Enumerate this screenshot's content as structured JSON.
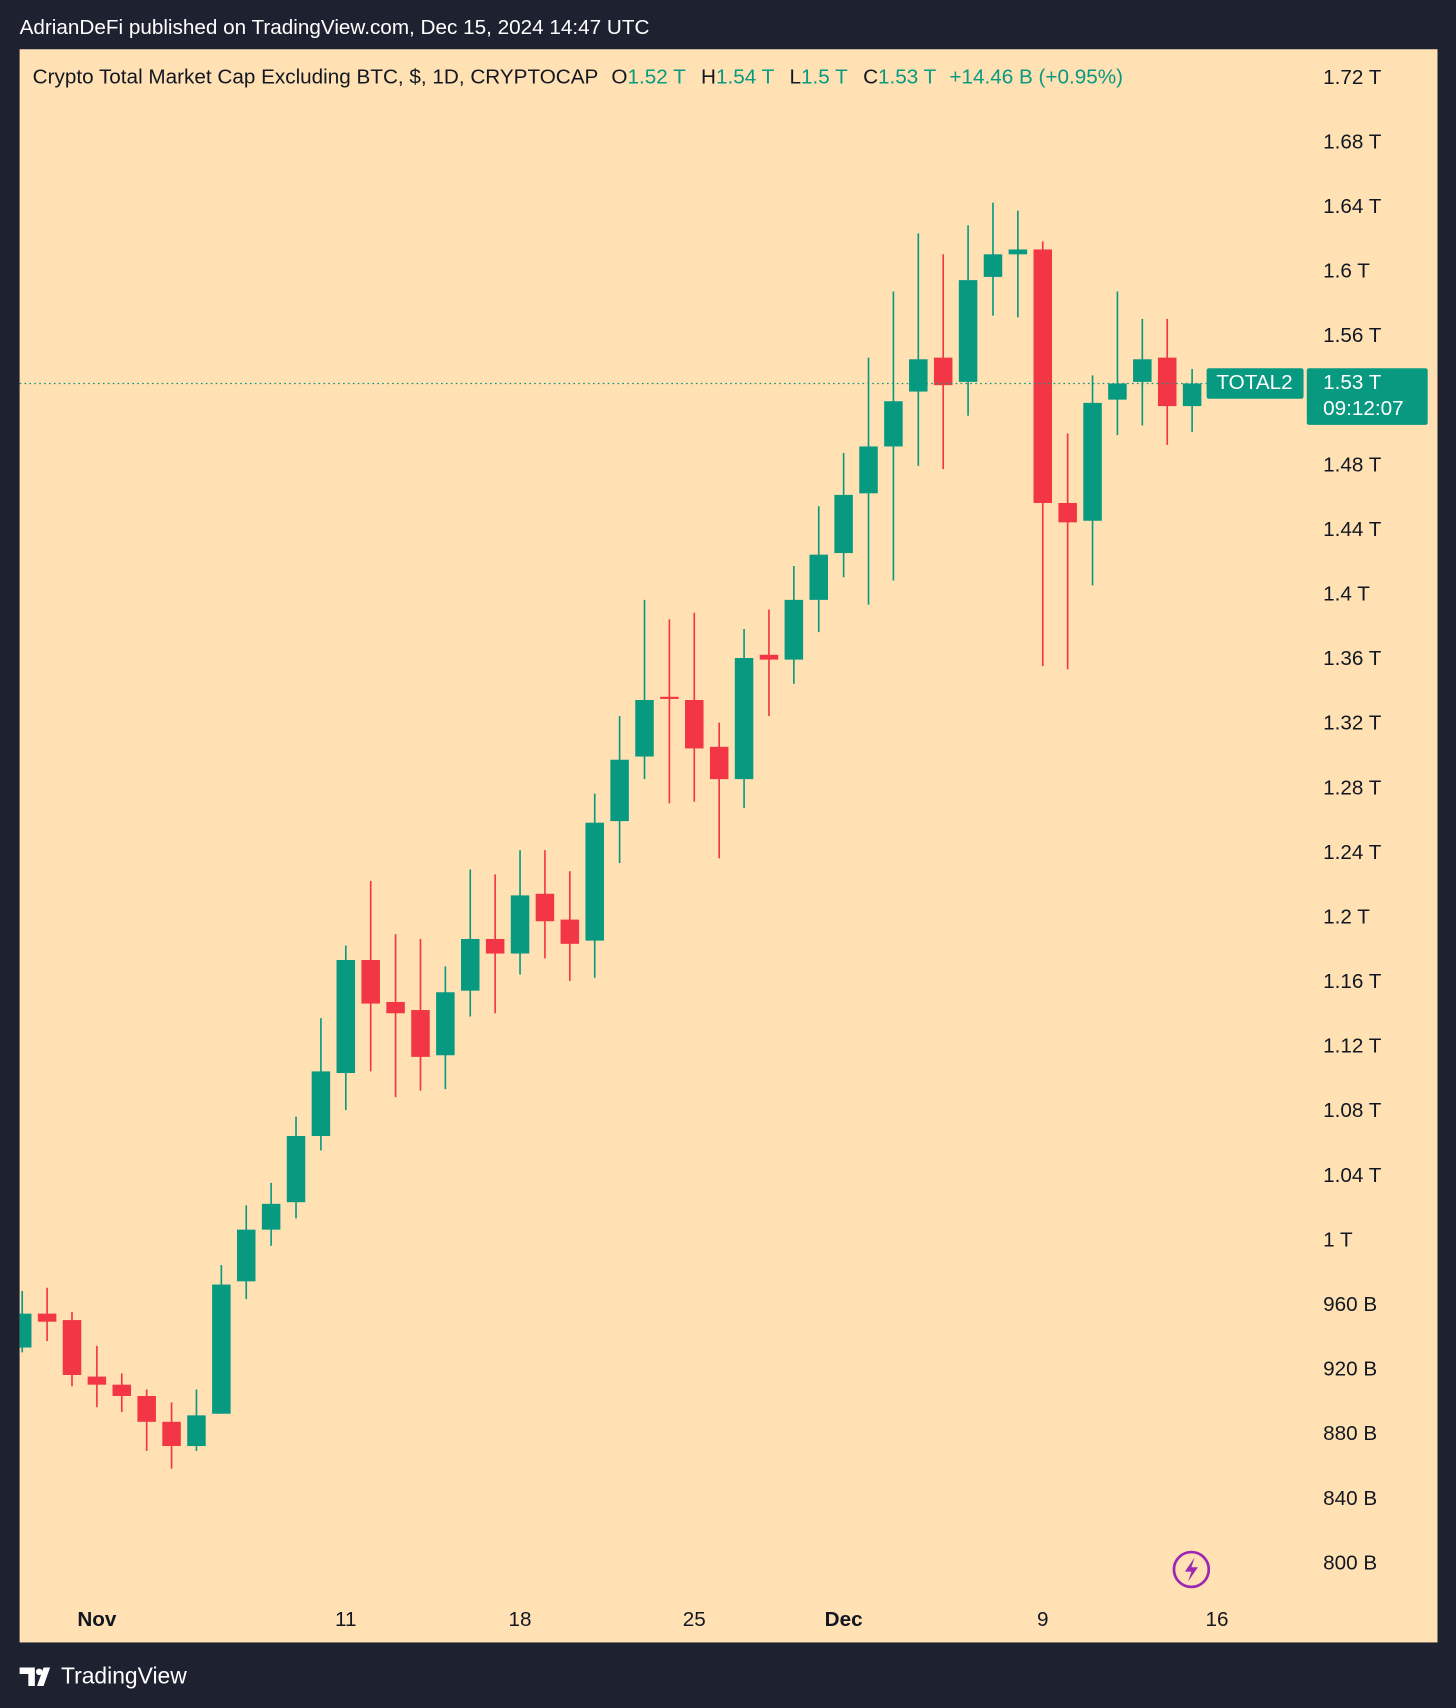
{
  "header": {
    "published": "AdrianDeFi published on TradingView.com, Dec 15, 2024 14:47 UTC"
  },
  "footer": {
    "brand": "TradingView"
  },
  "chart_data": {
    "type": "candlestick",
    "title": "Crypto Total Market Cap Excluding BTC, $, 1D, CRYPTOCAP",
    "ohlc_legend": [
      {
        "key": "O",
        "text": "1.52 T"
      },
      {
        "key": "H",
        "text": "1.54 T"
      },
      {
        "key": "L",
        "text": "1.5 T"
      },
      {
        "key": "C",
        "text": "1.53 T"
      }
    ],
    "change": "+14.46 B (+0.95%)",
    "symbol": "TOTAL2",
    "last_price_label": "1.53 T",
    "countdown": "09:12:07",
    "up_color": "#089981",
    "down_color": "#f23645",
    "background": "#ffe1b3",
    "categories": [
      "Oct 29",
      "Oct 30",
      "Oct 31",
      "Nov 1",
      "Nov 2",
      "Nov 3",
      "Nov 4",
      "Nov 5",
      "Nov 6",
      "Nov 7",
      "Nov 8",
      "Nov 9",
      "Nov 10",
      "Nov 11",
      "Nov 12",
      "Nov 13",
      "Nov 14",
      "Nov 15",
      "Nov 16",
      "Nov 17",
      "Nov 18",
      "Nov 19",
      "Nov 20",
      "Nov 21",
      "Nov 22",
      "Nov 23",
      "Nov 24",
      "Nov 25",
      "Nov 26",
      "Nov 27",
      "Nov 28",
      "Nov 29",
      "Nov 30",
      "Dec 1",
      "Dec 2",
      "Dec 3",
      "Dec 4",
      "Dec 5",
      "Dec 6",
      "Dec 7",
      "Dec 8",
      "Dec 9",
      "Dec 10",
      "Dec 11",
      "Dec 12",
      "Dec 13",
      "Dec 14",
      "Dec 15"
    ],
    "open": [
      934,
      955,
      951,
      916,
      911,
      904,
      888,
      873,
      893,
      975,
      1007,
      1024,
      1065,
      1104,
      1174,
      1148,
      1143,
      1115,
      1155,
      1187,
      1178,
      1215,
      1199,
      1186,
      1260,
      1300,
      1337,
      1335,
      1306,
      1286,
      1363,
      1360,
      1397,
      1426,
      1463,
      1492,
      1526,
      1547,
      1532,
      1597,
      1611,
      1614,
      1457,
      1446,
      1521,
      1532,
      1547,
      1517
    ],
    "high": [
      969,
      971,
      956,
      935,
      918,
      908,
      900,
      908,
      985,
      1022,
      1036,
      1077,
      1138,
      1183,
      1223,
      1190,
      1187,
      1170,
      1230,
      1227,
      1242,
      1242,
      1229,
      1277,
      1325,
      1397,
      1385,
      1389,
      1321,
      1379,
      1391,
      1418,
      1455,
      1488,
      1547,
      1588,
      1624,
      1611,
      1629,
      1643,
      1638,
      1619,
      1500,
      1536,
      1588,
      1571,
      1571,
      1540
    ],
    "low": [
      931,
      938,
      910,
      897,
      894,
      870,
      859,
      870,
      893,
      964,
      997,
      1014,
      1056,
      1081,
      1105,
      1089,
      1093,
      1094,
      1139,
      1141,
      1165,
      1175,
      1161,
      1163,
      1234,
      1286,
      1271,
      1272,
      1237,
      1268,
      1325,
      1345,
      1377,
      1411,
      1394,
      1409,
      1480,
      1478,
      1511,
      1573,
      1572,
      1356,
      1354,
      1406,
      1499,
      1505,
      1493,
      1501
    ],
    "close": [
      955,
      950,
      917,
      911,
      904,
      888,
      873,
      892,
      973,
      1007,
      1023,
      1065,
      1105,
      1174,
      1147,
      1141,
      1114,
      1154,
      1187,
      1178,
      1214,
      1198,
      1184,
      1259,
      1298,
      1335,
      1336,
      1305,
      1286,
      1361,
      1360,
      1397,
      1425,
      1462,
      1492,
      1520,
      1546,
      1530,
      1595,
      1611,
      1614,
      1457,
      1445,
      1519,
      1531,
      1546,
      1517,
      1531
    ],
    "ylim": [
      777,
      1738
    ],
    "yticks": [
      {
        "value": 800,
        "label": "800 B"
      },
      {
        "value": 840,
        "label": "840 B"
      },
      {
        "value": 880,
        "label": "880 B"
      },
      {
        "value": 920,
        "label": "920 B"
      },
      {
        "value": 960,
        "label": "960 B"
      },
      {
        "value": 1000,
        "label": "1 T"
      },
      {
        "value": 1040,
        "label": "1.04 T"
      },
      {
        "value": 1080,
        "label": "1.08 T"
      },
      {
        "value": 1120,
        "label": "1.12 T"
      },
      {
        "value": 1160,
        "label": "1.16 T"
      },
      {
        "value": 1200,
        "label": "1.2 T"
      },
      {
        "value": 1240,
        "label": "1.24 T"
      },
      {
        "value": 1280,
        "label": "1.28 T"
      },
      {
        "value": 1320,
        "label": "1.32 T"
      },
      {
        "value": 1360,
        "label": "1.36 T"
      },
      {
        "value": 1400,
        "label": "1.4 T"
      },
      {
        "value": 1440,
        "label": "1.44 T"
      },
      {
        "value": 1480,
        "label": "1.48 T"
      },
      {
        "value": 1560,
        "label": "1.56 T"
      },
      {
        "value": 1600,
        "label": "1.6 T"
      },
      {
        "value": 1640,
        "label": "1.64 T"
      },
      {
        "value": 1680,
        "label": "1.68 T"
      },
      {
        "value": 1720,
        "label": "1.72 T"
      }
    ],
    "xticks": [
      {
        "value": "Nov 1",
        "label": "Nov"
      },
      {
        "value": "Nov 11",
        "label": "11"
      },
      {
        "value": "Nov 18",
        "label": "18"
      },
      {
        "value": "Nov 25",
        "label": "25"
      },
      {
        "value": "Dec 1",
        "label": "Dec"
      },
      {
        "value": "Dec 9",
        "label": "9"
      },
      {
        "value": "Dec 16",
        "label": "16"
      }
    ],
    "grid": false
  }
}
